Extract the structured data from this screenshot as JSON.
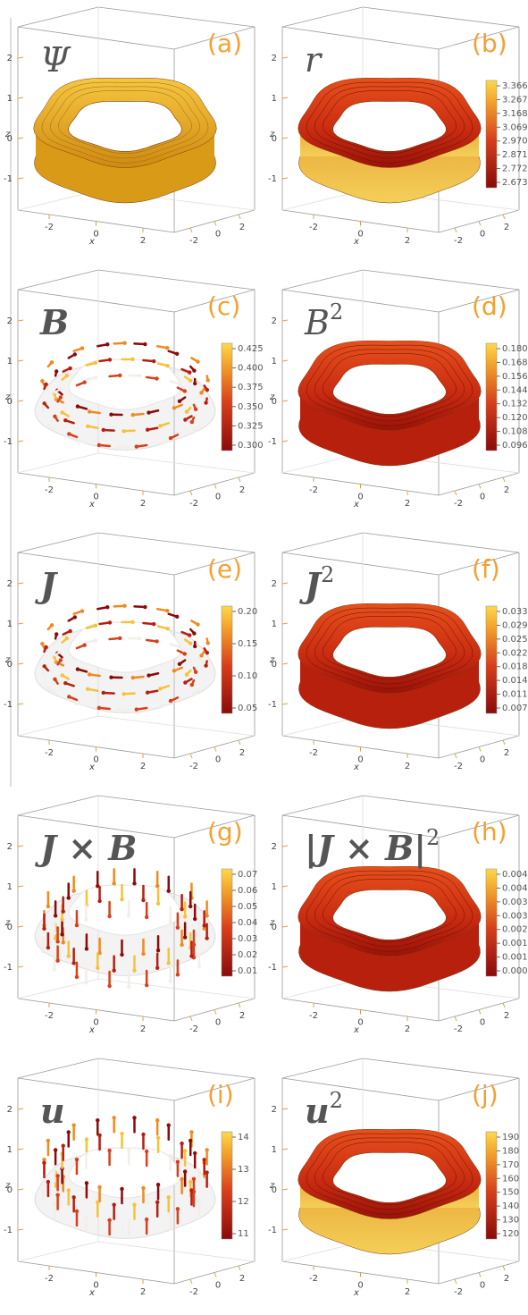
{
  "axes": {
    "x_label": "x",
    "z_label": "z",
    "x_ticks": [
      "-2",
      "0",
      "2"
    ],
    "y_ticks": [
      "-2",
      "0",
      "2"
    ],
    "z_ticks": [
      "2",
      "1",
      "0",
      "-1"
    ]
  },
  "panels": [
    {
      "label": "(a)",
      "symbol": "Ψ",
      "style": "mesh",
      "colorbar": []
    },
    {
      "label": "(b)",
      "symbol": "r",
      "style": "surface",
      "colorbar": [
        "3.366",
        "3.267",
        "3.168",
        "3.069",
        "2.970",
        "2.871",
        "2.772",
        "2.673"
      ]
    },
    {
      "label": "(c)",
      "symbol": "B",
      "style": "vector",
      "colorbar": [
        "0.425",
        "0.400",
        "0.375",
        "0.350",
        "0.325",
        "0.300"
      ]
    },
    {
      "label": "(d)",
      "symbol": "B",
      "sup": "2",
      "style": "surface",
      "colorbar": [
        "0.180",
        "0.168",
        "0.156",
        "0.144",
        "0.132",
        "0.120",
        "0.108",
        "0.096"
      ]
    },
    {
      "label": "(e)",
      "symbol": "J",
      "style": "vector",
      "colorbar": [
        "0.20",
        "0.15",
        "0.10",
        "0.05"
      ]
    },
    {
      "label": "(f)",
      "symbol": "J",
      "sup": "2",
      "style": "surface",
      "colorbar": [
        "0.0333",
        "0.0296",
        "0.0259",
        "0.0222",
        "0.0185",
        "0.0148",
        "0.0111",
        "0.0074"
      ]
    },
    {
      "label": "(g)",
      "symbol": "J × B",
      "style": "vector",
      "colorbar": [
        "0.07",
        "0.06",
        "0.05",
        "0.04",
        "0.03",
        "0.02",
        "0.01"
      ]
    },
    {
      "label": "(h)",
      "symbol": "|J × B|",
      "sup": "2",
      "style": "surface",
      "colorbar": [
        "0.00496",
        "0.00434",
        "0.00372",
        "0.00310",
        "0.00248",
        "0.00186",
        "0.00124",
        "0.00062"
      ]
    },
    {
      "label": "(i)",
      "symbol": "u",
      "style": "vector",
      "colorbar": [
        "14",
        "13",
        "12",
        "11"
      ]
    },
    {
      "label": "(j)",
      "symbol": "u",
      "sup": "2",
      "style": "surface",
      "colorbar": [
        "190",
        "180",
        "170",
        "160",
        "150",
        "140",
        "130",
        "120"
      ]
    }
  ]
}
